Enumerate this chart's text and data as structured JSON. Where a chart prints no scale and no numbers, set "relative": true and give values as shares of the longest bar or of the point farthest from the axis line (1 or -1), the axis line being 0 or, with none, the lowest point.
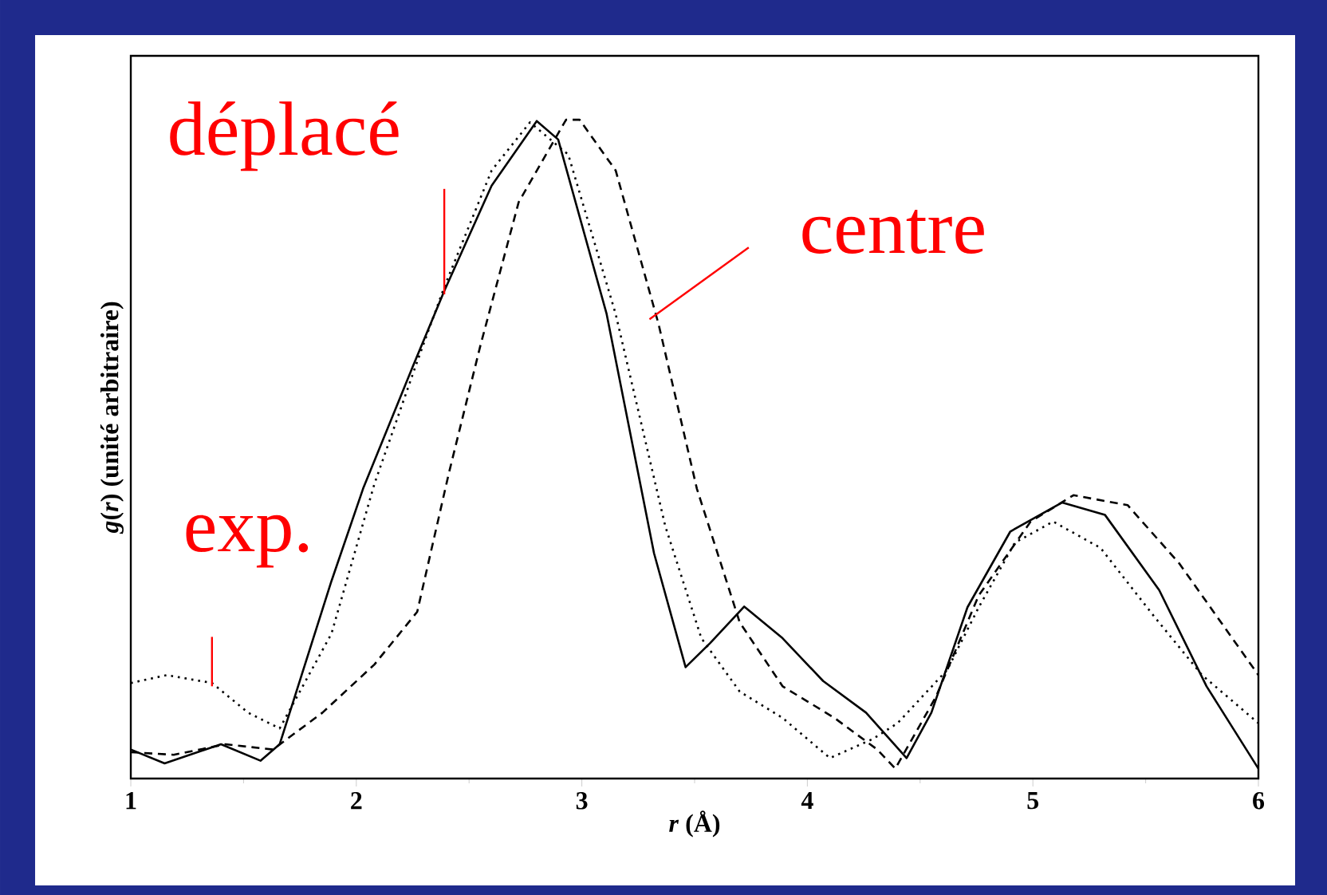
{
  "chart_data": {
    "type": "line",
    "relative": true,
    "xlabel": "*r* (Å)",
    "ylabel": "*g*(*r*) (unité arbitraire)",
    "xlim": [
      1,
      6
    ],
    "xticks": [
      1,
      2,
      3,
      4,
      5,
      6
    ],
    "grid": false,
    "marker": "none",
    "series": [
      {
        "name": "exp.",
        "color": "#000000",
        "line_style": "dotted",
        "x": [
          1.0,
          1.16,
          1.36,
          1.52,
          1.66,
          1.89,
          2.08,
          2.27,
          2.39,
          2.6,
          2.77,
          2.94,
          3.15,
          3.37,
          3.53,
          3.7,
          3.89,
          4.1,
          4.29,
          4.4,
          4.62,
          4.76,
          4.92,
          5.09,
          5.3,
          5.54,
          5.75,
          6.0
        ],
        "values": [
          0.145,
          0.157,
          0.145,
          0.1,
          0.076,
          0.22,
          0.447,
          0.633,
          0.746,
          0.923,
          0.996,
          0.947,
          0.705,
          0.383,
          0.213,
          0.132,
          0.092,
          0.031,
          0.06,
          0.084,
          0.165,
          0.26,
          0.358,
          0.39,
          0.35,
          0.245,
          0.157,
          0.084
        ]
      },
      {
        "name": "déplacé",
        "color": "#000000",
        "line_style": "solid",
        "x": [
          1.0,
          1.15,
          1.4,
          1.575,
          1.66,
          1.89,
          2.03,
          2.25,
          2.39,
          2.6,
          2.8,
          2.895,
          3.11,
          3.32,
          3.46,
          3.57,
          3.72,
          3.89,
          4.07,
          4.26,
          4.44,
          4.55,
          4.71,
          4.9,
          5.13,
          5.32,
          5.56,
          5.77,
          6.0
        ],
        "values": [
          0.044,
          0.023,
          0.052,
          0.027,
          0.052,
          0.3,
          0.44,
          0.625,
          0.74,
          0.9,
          0.998,
          0.97,
          0.705,
          0.342,
          0.169,
          0.206,
          0.261,
          0.213,
          0.148,
          0.1,
          0.031,
          0.1,
          0.26,
          0.375,
          0.419,
          0.4,
          0.286,
          0.14,
          0.015
        ]
      },
      {
        "name": "centre",
        "color": "#000000",
        "line_style": "dashed",
        "x": [
          1.0,
          1.19,
          1.42,
          1.63,
          1.85,
          2.08,
          2.27,
          2.41,
          2.55,
          2.72,
          2.93,
          2.99,
          3.15,
          3.34,
          3.51,
          3.7,
          3.89,
          4.12,
          4.31,
          4.39,
          4.57,
          4.76,
          4.99,
          5.18,
          5.42,
          5.65,
          6.0
        ],
        "values": [
          0.04,
          0.036,
          0.052,
          0.044,
          0.1,
          0.173,
          0.253,
          0.463,
          0.657,
          0.875,
          1.0,
          1.0,
          0.923,
          0.69,
          0.44,
          0.237,
          0.14,
          0.092,
          0.044,
          0.015,
          0.124,
          0.278,
          0.39,
          0.43,
          0.415,
          0.326,
          0.157
        ]
      }
    ]
  }
}
